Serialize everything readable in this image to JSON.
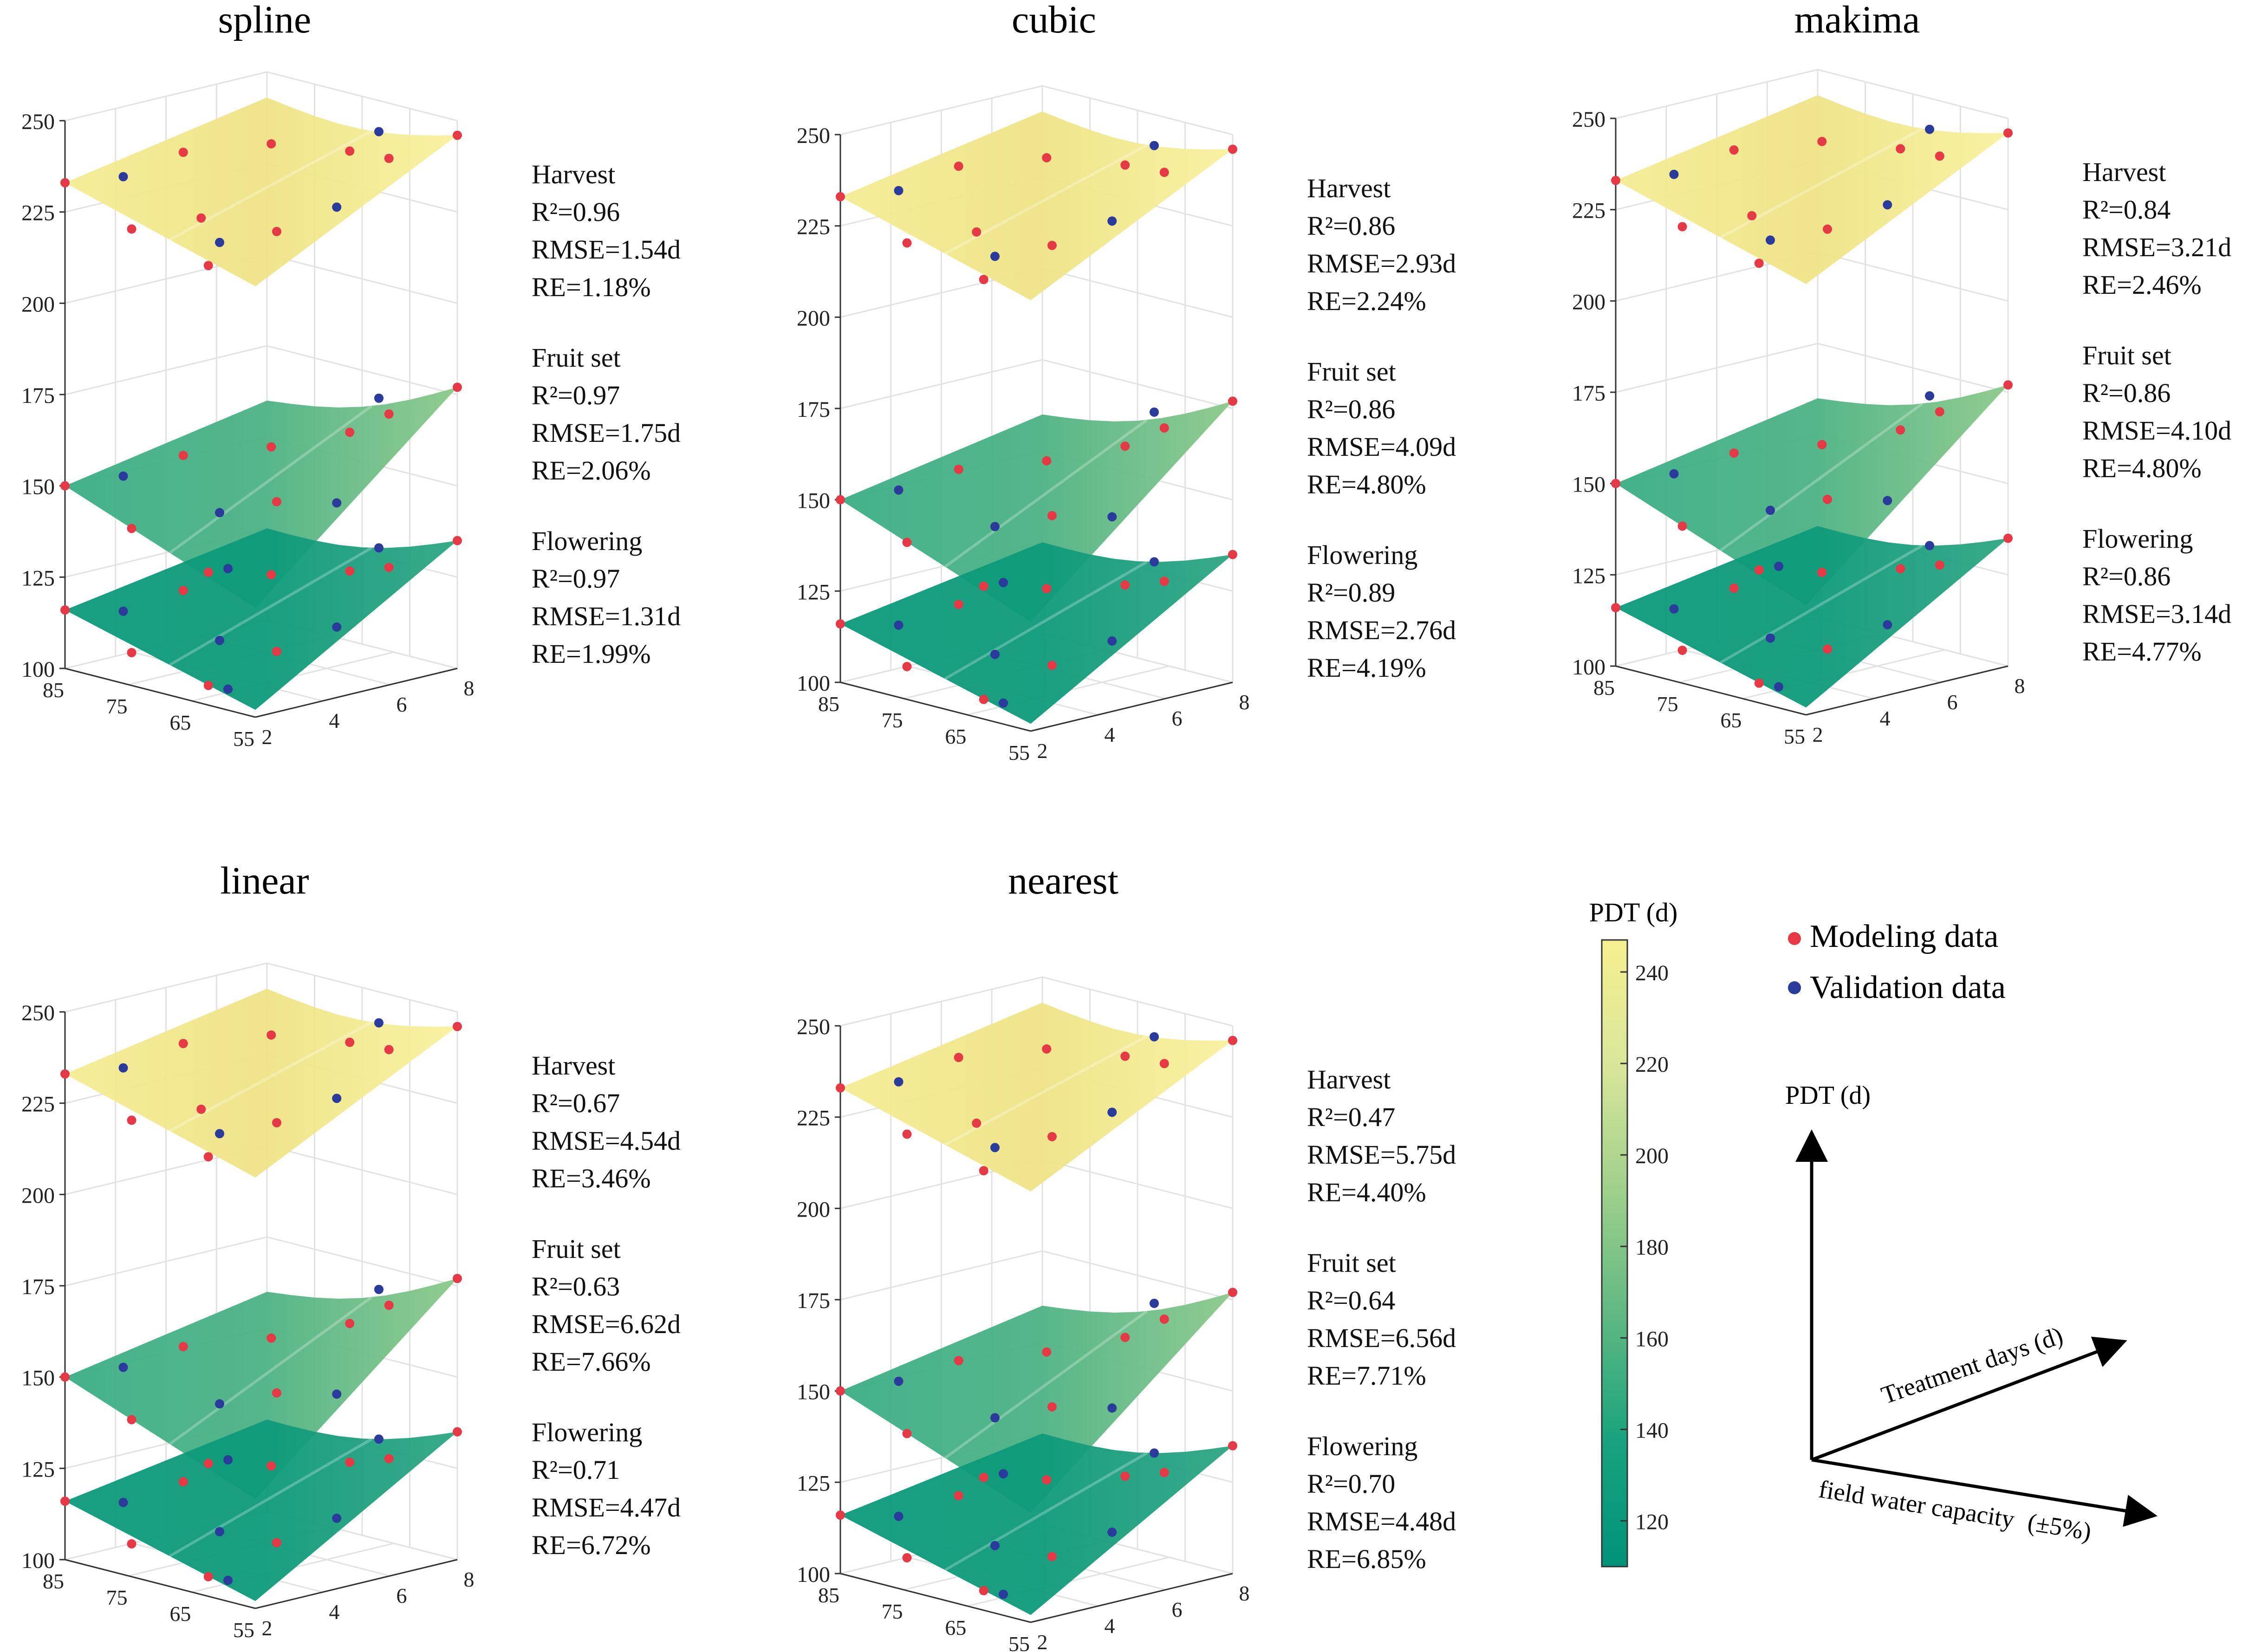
{
  "chart_data": [
    {
      "type": "surface",
      "title": "spline",
      "z_ticks": [
        "100",
        "125",
        "150",
        "175",
        "200",
        "225",
        "250"
      ],
      "zlim": [
        100,
        250
      ],
      "y_ticks": [
        "85",
        "75",
        "65",
        "55"
      ],
      "x_ticks": [
        "2",
        "4",
        "6",
        "8"
      ],
      "stats": [
        {
          "stage": "Harvest",
          "r2": "R²=0.96",
          "rmse": "RMSE=1.54d",
          "re": "RE=1.18%"
        },
        {
          "stage": "Fruit set",
          "r2": "R²=0.97",
          "rmse": "RMSE=1.75d",
          "re": "RE=2.06%"
        },
        {
          "stage": "Flowering",
          "r2": "R²=0.97",
          "rmse": "RMSE=1.31d",
          "re": "RE=1.99%"
        }
      ]
    },
    {
      "type": "surface",
      "title": "cubic",
      "z_ticks": [
        "100",
        "125",
        "150",
        "175",
        "200",
        "225",
        "250"
      ],
      "zlim": [
        100,
        250
      ],
      "y_ticks": [
        "85",
        "75",
        "65",
        "55"
      ],
      "x_ticks": [
        "2",
        "4",
        "6",
        "8"
      ],
      "stats": [
        {
          "stage": "Harvest",
          "r2": "R²=0.86",
          "rmse": "RMSE=2.93d",
          "re": "RE=2.24%"
        },
        {
          "stage": "Fruit set",
          "r2": "R²=0.86",
          "rmse": "RMSE=4.09d",
          "re": "RE=4.80%"
        },
        {
          "stage": "Flowering",
          "r2": "R²=0.89",
          "rmse": "RMSE=2.76d",
          "re": "RE=4.19%"
        }
      ]
    },
    {
      "type": "surface",
      "title": "makima",
      "z_ticks": [
        "100",
        "125",
        "150",
        "175",
        "200",
        "225",
        "250"
      ],
      "zlim": [
        100,
        250
      ],
      "y_ticks": [
        "85",
        "75",
        "65",
        "55"
      ],
      "x_ticks": [
        "2",
        "4",
        "6",
        "8"
      ],
      "stats": [
        {
          "stage": "Harvest",
          "r2": "R²=0.84",
          "rmse": "RMSE=3.21d",
          "re": "RE=2.46%"
        },
        {
          "stage": "Fruit set",
          "r2": "R²=0.86",
          "rmse": "RMSE=4.10d",
          "re": "RE=4.80%"
        },
        {
          "stage": "Flowering",
          "r2": "R²=0.86",
          "rmse": "RMSE=3.14d",
          "re": "RE=4.77%"
        }
      ]
    },
    {
      "type": "surface",
      "title": "linear",
      "z_ticks": [
        "100",
        "125",
        "150",
        "175",
        "200",
        "225",
        "250"
      ],
      "zlim": [
        100,
        250
      ],
      "y_ticks": [
        "85",
        "75",
        "65",
        "55"
      ],
      "x_ticks": [
        "2",
        "4",
        "6",
        "8"
      ],
      "stats": [
        {
          "stage": "Harvest",
          "r2": "R²=0.67",
          "rmse": "RMSE=4.54d",
          "re": "RE=3.46%"
        },
        {
          "stage": "Fruit set",
          "r2": "R²=0.63",
          "rmse": "RMSE=6.62d",
          "re": "RE=7.66%"
        },
        {
          "stage": "Flowering",
          "r2": "R²=0.71",
          "rmse": "RMSE=4.47d",
          "re": "RE=6.72%"
        }
      ]
    },
    {
      "type": "surface",
      "title": "nearest",
      "z_ticks": [
        "100",
        "125",
        "150",
        "175",
        "200",
        "225",
        "250"
      ],
      "zlim": [
        100,
        250
      ],
      "y_ticks": [
        "85",
        "75",
        "65",
        "55"
      ],
      "x_ticks": [
        "2",
        "4",
        "6",
        "8"
      ],
      "stats": [
        {
          "stage": "Harvest",
          "r2": "R²=0.47",
          "rmse": "RMSE=5.75d",
          "re": "RE=4.40%"
        },
        {
          "stage": "Fruit set",
          "r2": "R²=0.64",
          "rmse": "RMSE=6.56d",
          "re": "RE=7.71%"
        },
        {
          "stage": "Flowering",
          "r2": "R²=0.70",
          "rmse": "RMSE=4.48d",
          "re": "RE=6.85%"
        }
      ]
    }
  ],
  "colorbar": {
    "title": "PDT (d)",
    "ticks": [
      "120",
      "140",
      "160",
      "180",
      "200",
      "220",
      "240"
    ],
    "range": [
      110,
      247
    ],
    "colors": [
      "#00927a",
      "#18a37d",
      "#5fb882",
      "#9ed08b",
      "#d9e69a",
      "#f5f08f"
    ]
  },
  "legend": {
    "modeling": "Modeling data",
    "validation": "Validation data",
    "modeling_color": "#e63946",
    "validation_color": "#2a3b9c"
  },
  "axes_guide": {
    "z_label": "PDT (d)",
    "x_label": "Treatment days (d)",
    "y_label": "field water capacity",
    "y_suffix": "(±5%)"
  }
}
